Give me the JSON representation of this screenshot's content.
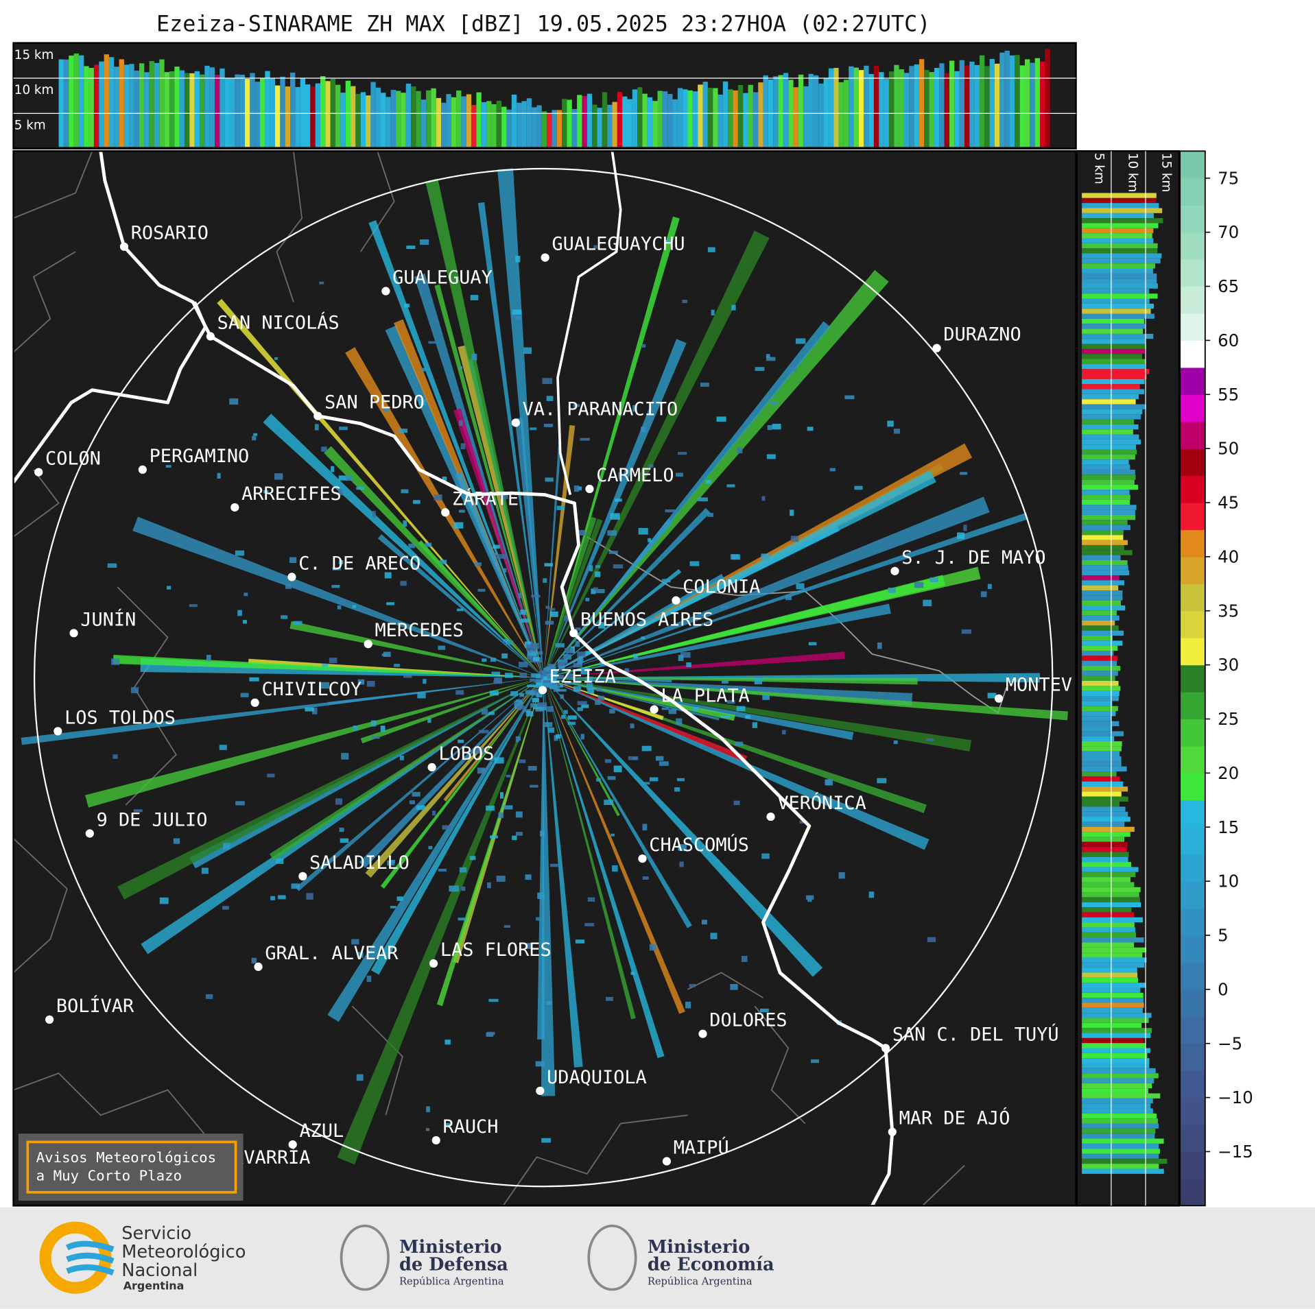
{
  "title": "Ezeiza-SINARAME ZH MAX [dBZ] 19.05.2025 23:27HOA (02:27UTC)",
  "top_panel": {
    "altitude_labels": [
      "15 km",
      "10 km",
      "5 km"
    ]
  },
  "side_panel": {
    "altitude_labels": [
      "5 km",
      "10 km",
      "15 km"
    ]
  },
  "map": {
    "cities": [
      "ROSARIO",
      "GUALEGUAYCHU",
      "GUALEGUAY",
      "SAN NICOLÁS",
      "DURAZNO",
      "SAN PEDRO",
      "VA. PARANACITO",
      "COLON",
      "PERGAMINO",
      "CARMELO",
      "ARRECIFES",
      "ZÁRATE",
      "S. J. DE MAYO",
      "C. DE ARECO",
      "COLONIA",
      "BUENOS AIRES",
      "JUNÍN",
      "MERCEDES",
      "EZEIZA",
      "MONTEV",
      "CHIVILCOY",
      "LA PLATA",
      "LOS TOLDOS",
      "LOBOS",
      "VERÓNICA",
      "9 DE JULIO",
      "CHASCOMÚS",
      "SALADILLO",
      "GRAL. ALVEAR",
      "LAS FLORES",
      "BOLÍVAR",
      "DOLORES",
      "SAN C. DEL TUYÚ",
      "UDAQUIOLA",
      "MAR DE AJÓ",
      "AZUL",
      "RAUCH",
      "OLAVARRÍA",
      "MAIPÚ"
    ]
  },
  "colorbar": {
    "lim": [
      -20,
      77.5
    ],
    "ticks": [
      75,
      70,
      65,
      60,
      55,
      50,
      45,
      40,
      35,
      30,
      25,
      20,
      15,
      10,
      5,
      0,
      {
        "value": -5,
        "label": "−5"
      },
      {
        "value": -10,
        "label": "−10"
      },
      {
        "value": -15,
        "label": "−15"
      }
    ],
    "colors": [
      "#3b3f6e",
      "#3d4577",
      "#3f4c80",
      "#415388",
      "#3f5a90",
      "#3e6399",
      "#3c6ca2",
      "#3a75aa",
      "#377fb2",
      "#3489bb",
      "#3192c2",
      "#2e9bc9",
      "#2ba4d0",
      "#29aed7",
      "#27b7de",
      "#3de83a",
      "#4fd93b",
      "#43c637",
      "#36a632",
      "#2b7f25",
      "#f0ee3a",
      "#d9d43a",
      "#c9c33c",
      "#d6a52a",
      "#e08a1a",
      "#f01830",
      "#d80020",
      "#a00010",
      "#c0006a",
      "#e000c8",
      "#a000a8",
      "#ffffff",
      "#e0f5ea",
      "#c8ecd8",
      "#b2e4cc",
      "#a0dcc0",
      "#90d6b8",
      "#84d0b0",
      "#78caa8"
    ]
  },
  "notice": {
    "lines": [
      "Avisos Meteorológicos",
      "a Muy Corto Plazo"
    ]
  },
  "footer": {
    "logos": [
      {
        "lines": [
          "Servicio",
          "Meteorológico",
          "Nacional",
          "Argentina"
        ]
      },
      {
        "lines": [
          "Ministerio",
          "de Defensa",
          "República Argentina"
        ]
      },
      {
        "lines": [
          "Ministerio",
          "de Economía",
          "República Argentina"
        ]
      }
    ]
  }
}
